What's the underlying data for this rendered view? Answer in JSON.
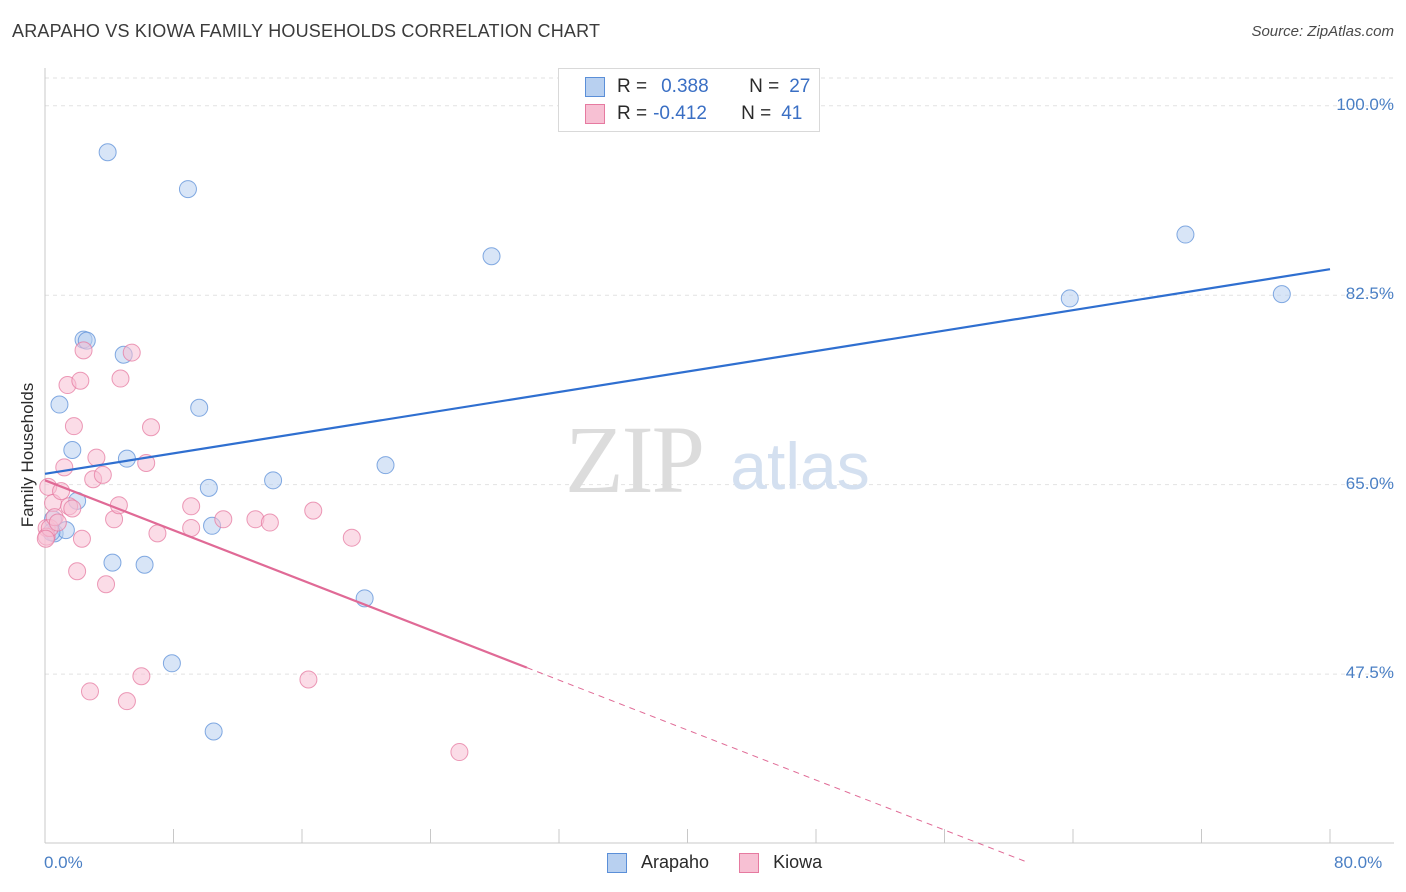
{
  "chart_data": {
    "type": "scatter",
    "title": "ARAPAHO VS KIOWA FAMILY HOUSEHOLDS CORRELATION CHART",
    "source": "Source: ZipAtlas.com",
    "xlabel": "",
    "ylabel": "Family Households",
    "xlim": [
      0,
      80
    ],
    "ylim": [
      31.9,
      103.3
    ],
    "x_tick_labels": [
      "0.0%",
      "80.0%"
    ],
    "y_ticks": [
      {
        "value": 100.0,
        "label": "100.0%"
      },
      {
        "value": 82.5,
        "label": "82.5%"
      },
      {
        "value": 65.0,
        "label": "65.0%"
      },
      {
        "value": 47.5,
        "label": "47.5%"
      }
    ],
    "watermark": {
      "zip": "ZIP",
      "atlas": "atlas"
    },
    "legend": {
      "r_label": "R =",
      "n_label": "N =",
      "entries": [
        {
          "name": "Arapaho",
          "r": "0.388",
          "n": "27"
        },
        {
          "name": "Kiowa",
          "r": "-0.412",
          "n": "41"
        }
      ]
    },
    "series": [
      {
        "name": "Arapaho",
        "color": "#5b8fd8",
        "fill": "#b8d0f0",
        "trend": {
          "x0": 0,
          "y0": 66.0,
          "x1": 80,
          "y1": 84.9
        },
        "points": [
          [
            0.5,
            61.8
          ],
          [
            0.6,
            60.5
          ],
          [
            1.3,
            60.8
          ],
          [
            0.9,
            72.4
          ],
          [
            1.7,
            68.2
          ],
          [
            2.0,
            63.5
          ],
          [
            2.4,
            78.4
          ],
          [
            2.6,
            78.3
          ],
          [
            3.9,
            95.7
          ],
          [
            4.2,
            57.8
          ],
          [
            4.9,
            77.0
          ],
          [
            5.1,
            67.4
          ],
          [
            6.2,
            57.6
          ],
          [
            7.9,
            48.5
          ],
          [
            8.9,
            92.3
          ],
          [
            9.6,
            72.1
          ],
          [
            10.2,
            64.7
          ],
          [
            10.4,
            61.2
          ],
          [
            10.5,
            42.2
          ],
          [
            14.2,
            65.4
          ],
          [
            19.9,
            54.5
          ],
          [
            21.2,
            66.8
          ],
          [
            27.8,
            86.1
          ],
          [
            63.8,
            82.2
          ],
          [
            71.0,
            88.1
          ],
          [
            77.0,
            82.6
          ],
          [
            0.4,
            60.6
          ]
        ]
      },
      {
        "name": "Kiowa",
        "color": "#e67aa0",
        "fill": "#f7c0d3",
        "trend": {
          "x0": 0,
          "y0": 65.4,
          "x1": 30,
          "y1": 48.1,
          "dash_x1": 61.2,
          "dash_y1": 30.1
        },
        "points": [
          [
            0.1,
            61.0
          ],
          [
            0.1,
            60.2
          ],
          [
            0.2,
            64.8
          ],
          [
            0.3,
            61.0
          ],
          [
            0.5,
            63.3
          ],
          [
            0.6,
            62.0
          ],
          [
            0.8,
            61.5
          ],
          [
            1.0,
            64.4
          ],
          [
            1.2,
            66.6
          ],
          [
            1.4,
            74.2
          ],
          [
            1.5,
            63.0
          ],
          [
            1.7,
            62.8
          ],
          [
            1.8,
            70.4
          ],
          [
            2.0,
            57.0
          ],
          [
            2.2,
            74.6
          ],
          [
            2.3,
            60.0
          ],
          [
            2.4,
            77.4
          ],
          [
            2.8,
            45.9
          ],
          [
            3.0,
            65.5
          ],
          [
            3.2,
            67.5
          ],
          [
            3.6,
            65.9
          ],
          [
            3.8,
            55.8
          ],
          [
            4.3,
            61.8
          ],
          [
            4.6,
            63.1
          ],
          [
            4.7,
            74.8
          ],
          [
            5.1,
            45.0
          ],
          [
            5.4,
            77.2
          ],
          [
            6.0,
            47.3
          ],
          [
            6.3,
            67.0
          ],
          [
            6.6,
            70.3
          ],
          [
            7.0,
            60.5
          ],
          [
            9.1,
            61.0
          ],
          [
            9.1,
            63.0
          ],
          [
            11.1,
            61.8
          ],
          [
            13.1,
            61.8
          ],
          [
            14.0,
            61.5
          ],
          [
            16.4,
            47.0
          ],
          [
            16.7,
            62.6
          ],
          [
            19.1,
            60.1
          ],
          [
            25.8,
            40.3
          ],
          [
            0.05,
            60.0
          ]
        ]
      }
    ]
  }
}
